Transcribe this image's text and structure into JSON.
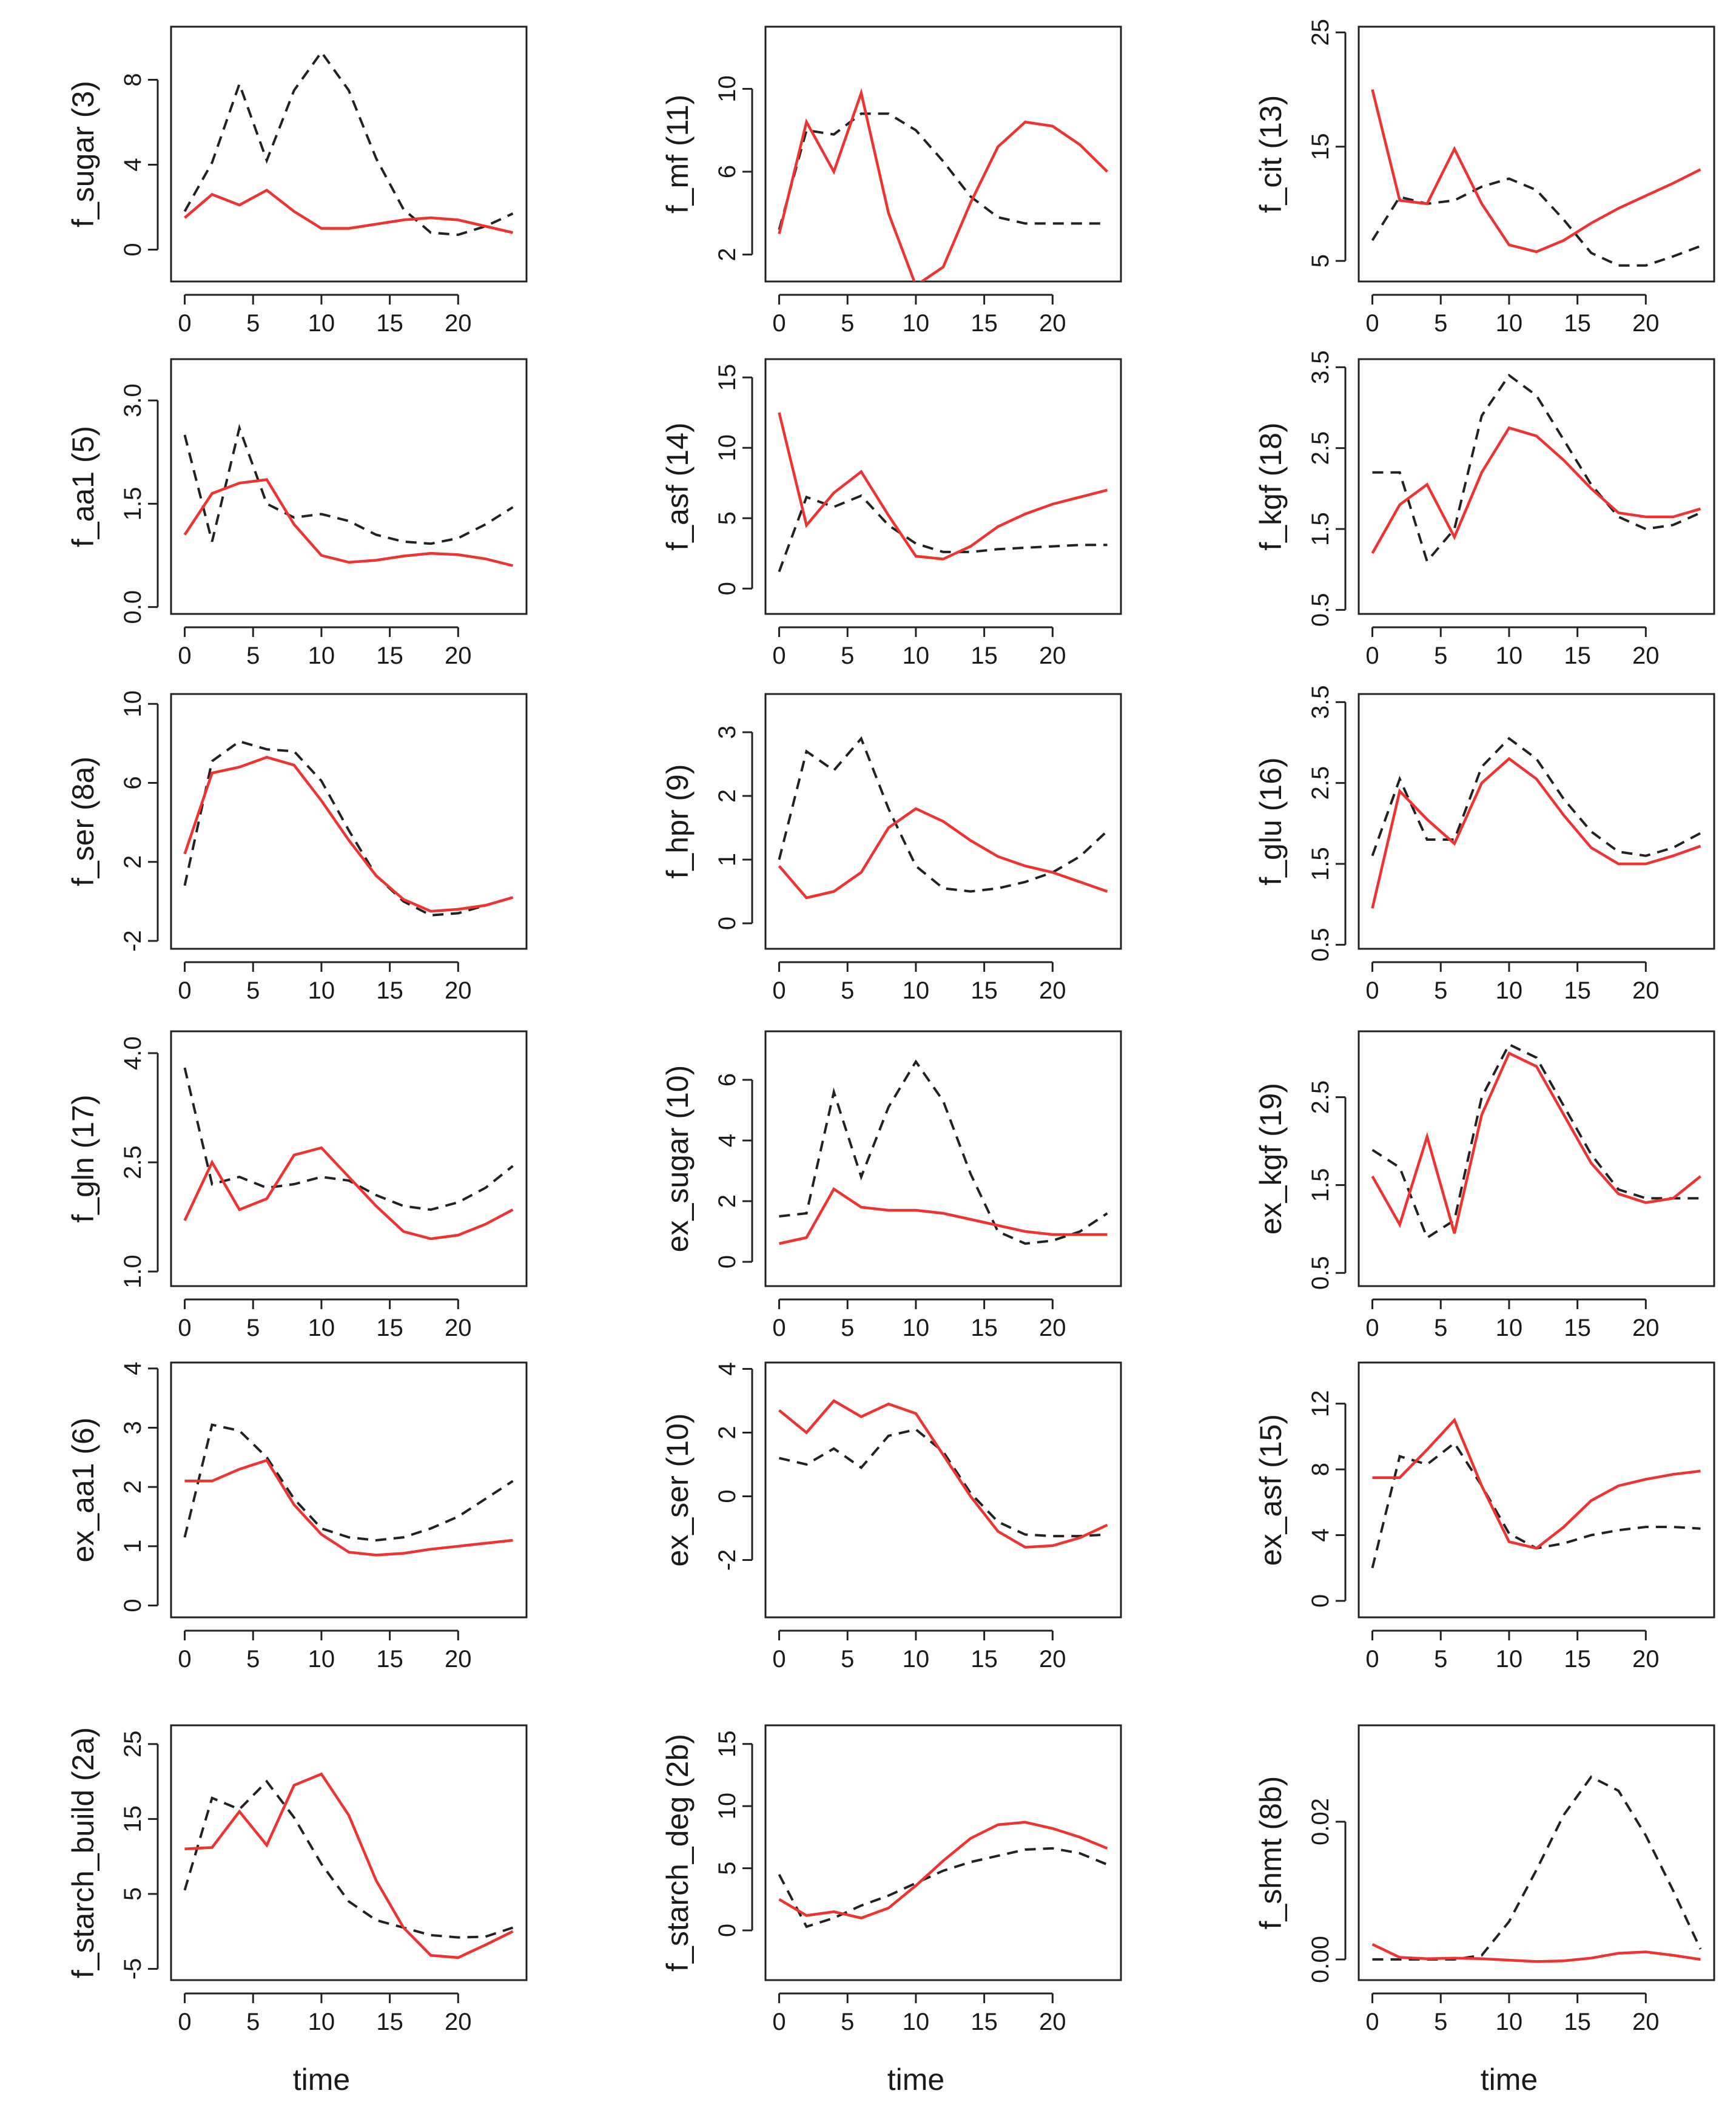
{
  "chart_data": {
    "type": "line",
    "layout": "grid-6x3",
    "xlabel": "time",
    "series_styles": [
      {
        "name": "solid",
        "color": "#ee3333",
        "dash": "solid"
      },
      {
        "name": "dashed",
        "color": "#222222",
        "dash": "dashed"
      }
    ],
    "panels": [
      {
        "ylabel": "f_sugar (3)",
        "xticks": [
          "0",
          "5",
          "10",
          "15",
          "20"
        ],
        "yticks": [
          "0",
          "4",
          "8"
        ],
        "ylim": [
          -1.5,
          10.5
        ],
        "x": [
          0,
          2,
          4,
          6,
          8,
          10,
          12,
          14,
          16,
          18,
          20,
          22,
          24
        ],
        "red": [
          1.5,
          2.6,
          2.1,
          2.8,
          1.8,
          1.0,
          1.0,
          1.2,
          1.4,
          1.5,
          1.4,
          1.1,
          0.8
        ],
        "black": [
          1.8,
          4.1,
          7.8,
          4.2,
          7.5,
          9.3,
          7.5,
          4.3,
          1.9,
          0.8,
          0.7,
          1.1,
          1.7
        ]
      },
      {
        "ylabel": "f_mf (11)",
        "xticks": [
          "0",
          "5",
          "10",
          "15",
          "20"
        ],
        "yticks": [
          "2",
          "6",
          "10"
        ],
        "ylim": [
          0.7,
          13.0
        ],
        "x": [
          0,
          2,
          4,
          6,
          8,
          10,
          12,
          14,
          16,
          18,
          20,
          22,
          24
        ],
        "red": [
          3.0,
          8.4,
          6.0,
          9.8,
          4.0,
          0.5,
          1.4,
          4.5,
          7.2,
          8.4,
          8.2,
          7.3,
          6.0
        ],
        "black": [
          3.2,
          8.0,
          7.8,
          8.8,
          8.8,
          8.0,
          6.5,
          4.8,
          3.8,
          3.5,
          3.5,
          3.5,
          3.5
        ]
      },
      {
        "ylabel": "f_cit (13)",
        "xticks": [
          "0",
          "5",
          "10",
          "15",
          "20"
        ],
        "yticks": [
          "5",
          "15",
          "25"
        ],
        "ylim": [
          3.2,
          25.5
        ],
        "x": [
          0,
          2,
          4,
          6,
          8,
          10,
          12,
          14,
          16,
          18,
          20,
          22,
          24
        ],
        "red": [
          20.0,
          10.3,
          10.0,
          14.8,
          10.0,
          6.4,
          5.8,
          6.8,
          8.3,
          9.6,
          10.7,
          11.8,
          13.0
        ],
        "black": [
          6.8,
          10.6,
          10.0,
          10.3,
          11.5,
          12.2,
          11.2,
          8.6,
          5.7,
          4.6,
          4.6,
          5.4,
          6.3
        ]
      },
      {
        "ylabel": "f_aa1 (5)",
        "xticks": [
          "0",
          "5",
          "10",
          "15",
          "20"
        ],
        "yticks": [
          "0.0",
          "1.5",
          "3.0"
        ],
        "ylim": [
          -0.1,
          3.6
        ],
        "x": [
          0,
          2,
          4,
          6,
          8,
          10,
          12,
          14,
          16,
          18,
          20,
          22,
          24
        ],
        "red": [
          1.05,
          1.65,
          1.8,
          1.85,
          1.2,
          0.75,
          0.65,
          0.68,
          0.74,
          0.78,
          0.76,
          0.7,
          0.6
        ],
        "black": [
          2.5,
          0.95,
          2.6,
          1.5,
          1.3,
          1.35,
          1.25,
          1.05,
          0.95,
          0.92,
          1.0,
          1.2,
          1.45
        ]
      },
      {
        "ylabel": "f_asf (14)",
        "xticks": [
          "0",
          "5",
          "10",
          "15",
          "20"
        ],
        "yticks": [
          "0",
          "5",
          "10",
          "15"
        ],
        "ylim": [
          -1.8,
          16.3
        ],
        "x": [
          0,
          2,
          4,
          6,
          8,
          10,
          12,
          14,
          16,
          18,
          20,
          22,
          24
        ],
        "red": [
          12.5,
          4.5,
          6.8,
          8.3,
          5.2,
          2.3,
          2.1,
          3.0,
          4.4,
          5.3,
          6.0,
          6.5,
          7.0
        ],
        "black": [
          1.2,
          6.5,
          5.8,
          6.6,
          4.5,
          3.2,
          2.6,
          2.6,
          2.8,
          2.9,
          3.0,
          3.1,
          3.1
        ],
        "black_note": "black first seg passes low then up"
      },
      {
        "ylabel": "f_kgf (18)",
        "xticks": [
          "0",
          "5",
          "10",
          "15",
          "20"
        ],
        "yticks": [
          "0.5",
          "1.5",
          "2.5",
          "3.5"
        ],
        "ylim": [
          0.45,
          3.6
        ],
        "x": [
          0,
          2,
          4,
          6,
          8,
          10,
          12,
          14,
          16,
          18,
          20,
          22,
          24
        ],
        "red": [
          1.2,
          1.8,
          2.05,
          1.4,
          2.2,
          2.75,
          2.65,
          2.35,
          2.0,
          1.7,
          1.65,
          1.65,
          1.75
        ],
        "black": [
          2.2,
          2.2,
          1.1,
          1.5,
          2.9,
          3.4,
          3.15,
          2.6,
          2.05,
          1.65,
          1.5,
          1.55,
          1.7
        ]
      },
      {
        "ylabel": "f_ser (8a)",
        "xticks": [
          "0",
          "5",
          "10",
          "15",
          "20"
        ],
        "yticks": [
          "-2",
          "2",
          "6",
          "10"
        ],
        "ylim": [
          -2.4,
          10.5
        ],
        "x": [
          0,
          2,
          4,
          6,
          8,
          10,
          12,
          14,
          16,
          18,
          20,
          22,
          24
        ],
        "red": [
          2.4,
          6.5,
          6.8,
          7.3,
          6.9,
          5.1,
          3.1,
          1.3,
          0.1,
          -0.5,
          -0.4,
          -0.2,
          0.2
        ],
        "black": [
          0.8,
          7.1,
          8.1,
          7.7,
          7.6,
          6.1,
          3.6,
          1.3,
          0.0,
          -0.7,
          -0.6,
          -0.2,
          0.2
        ]
      },
      {
        "ylabel": "f_hpr (9)",
        "xticks": [
          "0",
          "5",
          "10",
          "15",
          "20"
        ],
        "yticks": [
          "0",
          "1",
          "2",
          "3"
        ],
        "ylim": [
          -0.4,
          3.6
        ],
        "x": [
          0,
          2,
          4,
          6,
          8,
          10,
          12,
          14,
          16,
          18,
          20,
          22,
          24
        ],
        "red": [
          0.9,
          0.4,
          0.5,
          0.8,
          1.5,
          1.8,
          1.6,
          1.3,
          1.05,
          0.9,
          0.8,
          0.65,
          0.5
        ],
        "black": [
          1.0,
          2.7,
          2.4,
          2.9,
          1.8,
          0.9,
          0.55,
          0.5,
          0.55,
          0.65,
          0.8,
          1.05,
          1.45
        ]
      },
      {
        "ylabel": "f_glu (16)",
        "xticks": [
          "0",
          "5",
          "10",
          "15",
          "20"
        ],
        "yticks": [
          "0.5",
          "1.5",
          "2.5",
          "3.5"
        ],
        "ylim": [
          0.45,
          3.6
        ],
        "x": [
          0,
          2,
          4,
          6,
          8,
          10,
          12,
          14,
          16,
          18,
          20,
          22,
          24
        ],
        "red": [
          0.95,
          2.4,
          2.05,
          1.75,
          2.5,
          2.8,
          2.55,
          2.1,
          1.7,
          1.5,
          1.5,
          1.6,
          1.72
        ],
        "black": [
          1.6,
          2.55,
          1.8,
          1.8,
          2.7,
          3.05,
          2.8,
          2.3,
          1.9,
          1.65,
          1.6,
          1.7,
          1.88
        ]
      },
      {
        "ylabel": "f_gln (17)",
        "xticks": [
          "0",
          "5",
          "10",
          "15",
          "20"
        ],
        "yticks": [
          "1.0",
          "2.5",
          "4.0"
        ],
        "ylim": [
          0.8,
          4.3
        ],
        "x": [
          0,
          2,
          4,
          6,
          8,
          10,
          12,
          14,
          16,
          18,
          20,
          22,
          24
        ],
        "red": [
          1.7,
          2.5,
          1.85,
          2.0,
          2.6,
          2.7,
          2.3,
          1.9,
          1.55,
          1.45,
          1.5,
          1.65,
          1.85
        ],
        "black": [
          3.8,
          2.2,
          2.3,
          2.15,
          2.2,
          2.3,
          2.25,
          2.05,
          1.9,
          1.85,
          1.95,
          2.15,
          2.45
        ]
      },
      {
        "ylabel": "ex_sugar (10)",
        "xticks": [
          "0",
          "5",
          "10",
          "15",
          "20"
        ],
        "yticks": [
          "0",
          "2",
          "4",
          "6"
        ],
        "ylim": [
          -0.8,
          7.6
        ],
        "x": [
          0,
          2,
          4,
          6,
          8,
          10,
          12,
          14,
          16,
          18,
          20,
          22,
          24
        ],
        "red": [
          0.6,
          0.8,
          2.4,
          1.8,
          1.7,
          1.7,
          1.6,
          1.4,
          1.2,
          1.0,
          0.9,
          0.9,
          0.9
        ],
        "black": [
          1.5,
          1.6,
          5.6,
          2.8,
          5.1,
          6.6,
          5.3,
          2.9,
          1.0,
          0.6,
          0.7,
          1.0,
          1.6
        ]
      },
      {
        "ylabel": "ex_kgf (19)",
        "xticks": [
          "0",
          "5",
          "10",
          "15",
          "20"
        ],
        "yticks": [
          "0.5",
          "1.5",
          "2.5"
        ],
        "ylim": [
          0.35,
          3.25
        ],
        "x": [
          0,
          2,
          4,
          6,
          8,
          10,
          12,
          14,
          16,
          18,
          20,
          22,
          24
        ],
        "red": [
          1.6,
          1.05,
          2.05,
          0.95,
          2.3,
          3.0,
          2.85,
          2.3,
          1.75,
          1.4,
          1.3,
          1.35,
          1.6
        ],
        "black": [
          1.9,
          1.7,
          0.9,
          1.1,
          2.5,
          3.1,
          2.95,
          2.4,
          1.85,
          1.45,
          1.35,
          1.35,
          1.35
        ]
      },
      {
        "ylabel": "ex_aa1 (6)",
        "xticks": [
          "0",
          "5",
          "10",
          "15",
          "20"
        ],
        "yticks": [
          "0",
          "1",
          "2",
          "3",
          "4"
        ],
        "ylim": [
          -0.2,
          4.1
        ],
        "x": [
          0,
          2,
          4,
          6,
          8,
          10,
          12,
          14,
          16,
          18,
          20,
          22,
          24
        ],
        "red": [
          2.1,
          2.1,
          2.3,
          2.45,
          1.7,
          1.2,
          0.9,
          0.85,
          0.88,
          0.95,
          1.0,
          1.05,
          1.1
        ],
        "black": [
          1.15,
          3.05,
          2.95,
          2.5,
          1.8,
          1.3,
          1.15,
          1.1,
          1.15,
          1.3,
          1.5,
          1.8,
          2.1
        ]
      },
      {
        "ylabel": "ex_ser (10)",
        "xticks": [
          "0",
          "5",
          "10",
          "15",
          "20"
        ],
        "yticks": [
          "-2",
          "0",
          "2",
          "4"
        ],
        "ylim": [
          -3.8,
          4.2
        ],
        "x": [
          0,
          2,
          4,
          6,
          8,
          10,
          12,
          14,
          16,
          18,
          20,
          22,
          24
        ],
        "red": [
          2.7,
          2.0,
          3.0,
          2.5,
          2.9,
          2.6,
          1.3,
          0.0,
          -1.1,
          -1.6,
          -1.55,
          -1.3,
          -0.9
        ],
        "black": [
          1.2,
          1.0,
          1.5,
          0.9,
          1.9,
          2.1,
          1.4,
          0.1,
          -0.8,
          -1.2,
          -1.25,
          -1.25,
          -1.2
        ]
      },
      {
        "ylabel": "ex_asf (15)",
        "xticks": [
          "0",
          "5",
          "10",
          "15",
          "20"
        ],
        "yticks": [
          "0",
          "4",
          "8",
          "12"
        ],
        "ylim": [
          -1.0,
          14.5
        ],
        "x": [
          0,
          2,
          4,
          6,
          8,
          10,
          12,
          14,
          16,
          18,
          20,
          22,
          24
        ],
        "red": [
          7.5,
          7.5,
          9.2,
          11.0,
          7.0,
          3.6,
          3.2,
          4.5,
          6.1,
          7.0,
          7.4,
          7.7,
          7.9
        ],
        "black": [
          2.0,
          8.8,
          8.3,
          9.6,
          7.0,
          4.1,
          3.2,
          3.5,
          4.0,
          4.3,
          4.5,
          4.5,
          4.4
        ]
      },
      {
        "ylabel": "f_starch_build (2a)",
        "xticks": [
          "0",
          "5",
          "10",
          "15",
          "20"
        ],
        "yticks": [
          "-5",
          "5",
          "15",
          "25"
        ],
        "ylim": [
          -6.5,
          27.5
        ],
        "x": [
          0,
          2,
          4,
          6,
          8,
          10,
          12,
          14,
          16,
          18,
          20,
          22,
          24
        ],
        "red": [
          11.0,
          11.2,
          16.0,
          11.5,
          19.5,
          21.0,
          15.5,
          6.8,
          0.5,
          -3.2,
          -3.5,
          -1.8,
          0.0
        ],
        "black": [
          5.5,
          17.8,
          16.3,
          20.0,
          15.2,
          9.0,
          4.0,
          1.5,
          0.5,
          -0.5,
          -0.8,
          -0.7,
          0.5
        ]
      },
      {
        "ylabel": "f_starch_deg (2b)",
        "xticks": [
          "0",
          "5",
          "10",
          "15",
          "20"
        ],
        "yticks": [
          "0",
          "5",
          "10",
          "15"
        ],
        "ylim": [
          -4.0,
          16.5
        ],
        "x": [
          0,
          2,
          4,
          6,
          8,
          10,
          12,
          14,
          16,
          18,
          20,
          22,
          24
        ],
        "red": [
          2.5,
          1.2,
          1.5,
          1.0,
          1.8,
          3.6,
          5.6,
          7.4,
          8.5,
          8.7,
          8.2,
          7.5,
          6.6
        ],
        "black": [
          4.5,
          0.3,
          1.0,
          2.0,
          2.8,
          3.8,
          4.8,
          5.5,
          6.0,
          6.5,
          6.6,
          6.2,
          5.3
        ]
      },
      {
        "ylabel": "f_shmt (8b)",
        "xticks": [
          "0",
          "5",
          "10",
          "15",
          "20"
        ],
        "yticks": [
          "0.00",
          "0.02"
        ],
        "ylim": [
          -0.003,
          0.034
        ],
        "x": [
          0,
          2,
          4,
          6,
          8,
          10,
          12,
          14,
          16,
          18,
          20,
          22,
          24
        ],
        "red": [
          0.0022,
          0.0003,
          0.0001,
          0.0002,
          0.0001,
          -0.0001,
          -0.0003,
          -0.0002,
          0.0002,
          0.0009,
          0.0011,
          0.0006,
          0.0
        ],
        "black": [
          0.0,
          0.0,
          0.0,
          0.0,
          0.0006,
          0.0055,
          0.013,
          0.021,
          0.0265,
          0.0245,
          0.018,
          0.01,
          0.0015
        ]
      }
    ]
  }
}
